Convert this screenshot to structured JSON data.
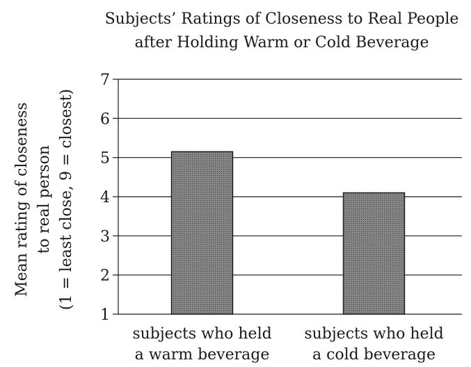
{
  "chart_data": {
    "type": "bar",
    "title": [
      "Subjects’ Ratings of Closeness to Real People",
      "after Holding Warm or Cold Beverage"
    ],
    "ylabel": [
      "Mean rating of closeness",
      "to real person",
      "(1 = least close, 9 = closest)"
    ],
    "xlabel": "",
    "categories": [
      [
        "subjects who held",
        "a warm beverage"
      ],
      [
        "subjects who held",
        "a cold beverage"
      ]
    ],
    "values": [
      5.15,
      4.1
    ],
    "ylim": [
      1,
      7
    ],
    "yticks": [
      "1",
      "2",
      "3",
      "4",
      "5",
      "6",
      "7"
    ],
    "grid": true,
    "legend": "none",
    "colors": {
      "bar_fill": "#8c8c8c",
      "bar_stroke": "#1a1a1a",
      "grid": "#1a1a1a"
    }
  }
}
